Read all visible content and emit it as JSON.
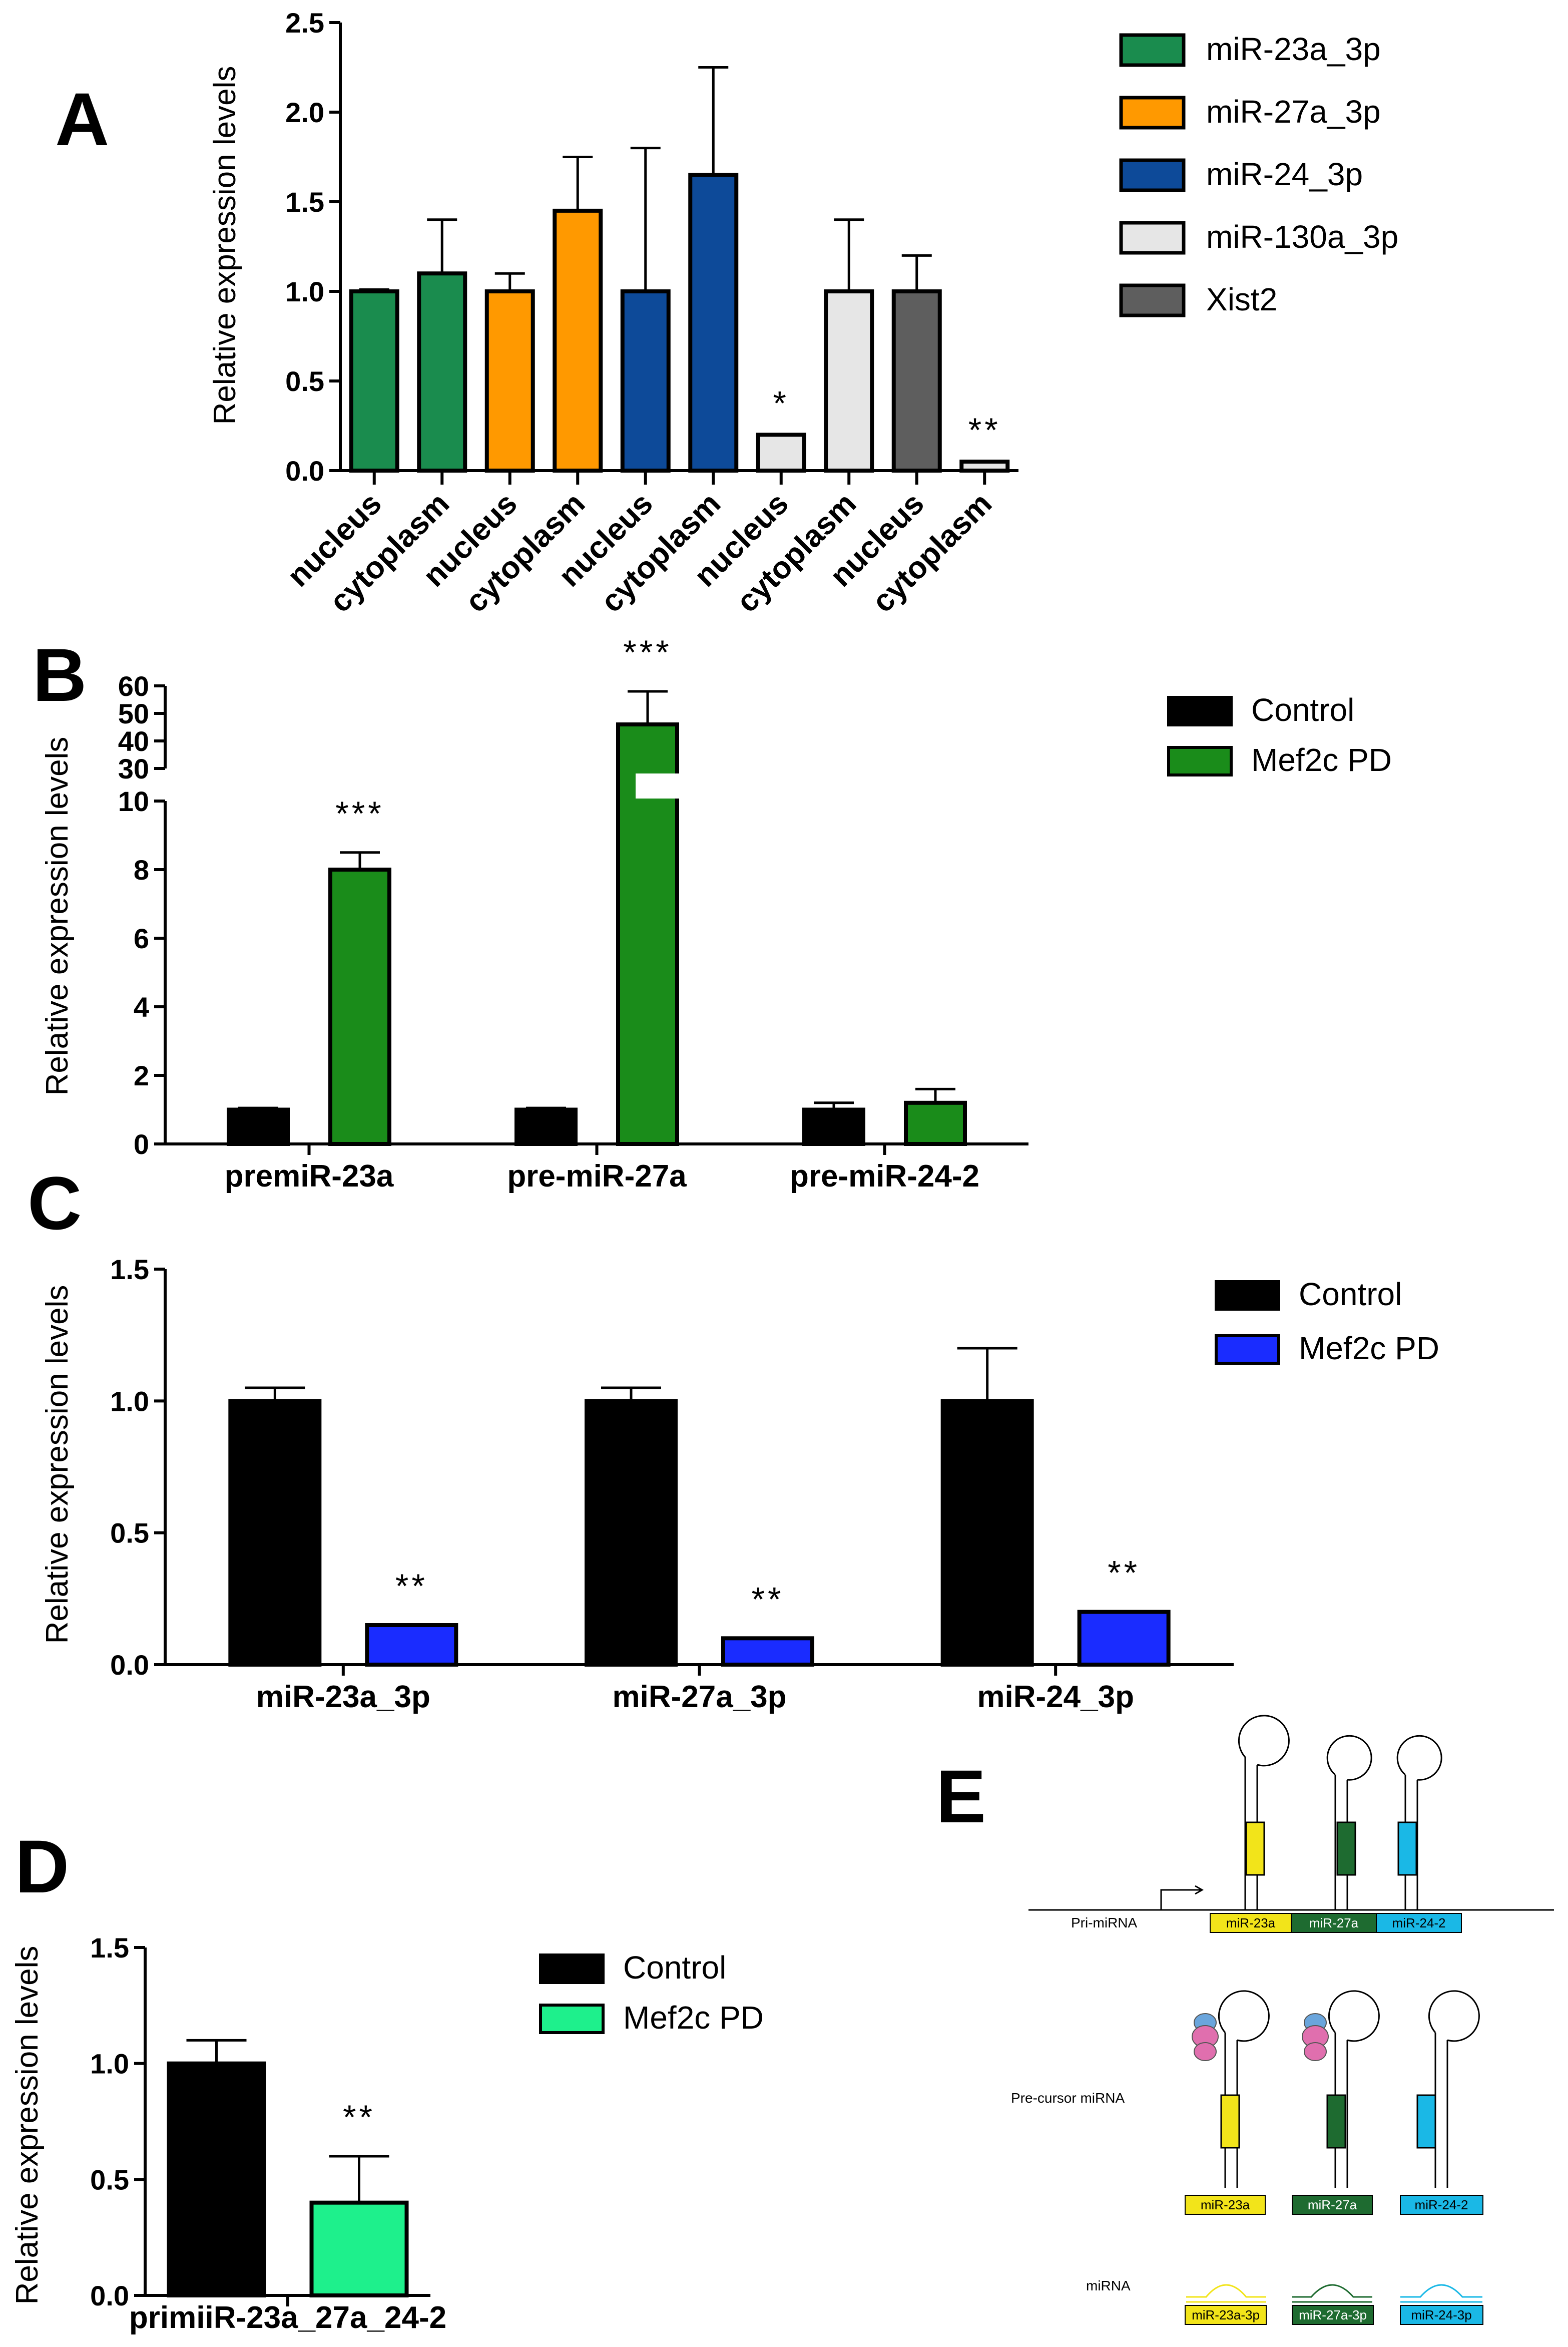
{
  "panels": {
    "A": "A",
    "B": "B",
    "C": "C",
    "D": "D",
    "E": "E"
  },
  "chart_data": [
    {
      "id": "A",
      "type": "bar",
      "title": "",
      "ylabel": "Relative expression levels",
      "ylim": [
        0,
        2.5
      ],
      "yticks": [
        0.0,
        0.5,
        1.0,
        1.5,
        2.0,
        2.5
      ],
      "yticklabels": [
        "0.0",
        "0.5",
        "1.0",
        "1.5",
        "2.0",
        "2.5"
      ],
      "categories": [
        "nucleus",
        "cytoplasm",
        "nucleus",
        "cytoplasm",
        "nucleus",
        "cytoplasm",
        "nucleus",
        "cytoplasm",
        "nucleus",
        "cytoplasm"
      ],
      "values": [
        1.0,
        1.1,
        1.0,
        1.45,
        1.0,
        1.65,
        0.2,
        1.0,
        1.0,
        0.05
      ],
      "errors": [
        0.01,
        0.3,
        0.1,
        0.3,
        0.8,
        0.6,
        0.0,
        0.4,
        0.2,
        0.0
      ],
      "colors": [
        "#1a8c4e",
        "#1a8c4e",
        "#ff9900",
        "#ff9900",
        "#0d4a99",
        "#0d4a99",
        "#e6e6e6",
        "#e6e6e6",
        "#5e5e5e",
        "#e6e6e6"
      ],
      "annotations": [
        "",
        "",
        "",
        "",
        "",
        "",
        "*",
        "",
        "",
        "**"
      ],
      "legend": [
        {
          "label": "miR-23a_3p",
          "color": "#1a8c4e"
        },
        {
          "label": "miR-27a_3p",
          "color": "#ff9900"
        },
        {
          "label": "miR-24_3p",
          "color": "#0d4a99"
        },
        {
          "label": "miR-130a_3p",
          "color": "#e6e6e6"
        },
        {
          "label": "Xist2",
          "color": "#5e5e5e"
        }
      ]
    },
    {
      "id": "B",
      "type": "bar",
      "ylabel": "Relative expression levels",
      "broken_axis": true,
      "ylim_lower": [
        0,
        10
      ],
      "ylim_upper": [
        30,
        60
      ],
      "yticks_lower": [
        0,
        2,
        4,
        6,
        8,
        10
      ],
      "yticklabels_lower": [
        "0",
        "2",
        "4",
        "6",
        "8",
        "10"
      ],
      "yticks_upper": [
        30,
        40,
        50,
        60
      ],
      "yticklabels_upper": [
        "30",
        "40",
        "50",
        "60"
      ],
      "categories": [
        "premiR-23a",
        "pre-miR-27a",
        "pre-miR-24-2"
      ],
      "series": [
        {
          "name": "Control",
          "color": "#000000",
          "values": [
            1.0,
            1.0,
            1.0
          ],
          "errors": [
            0.05,
            0.05,
            0.2
          ]
        },
        {
          "name": "Mef2c PD",
          "color": "#1a8c1a",
          "values": [
            8.0,
            46.0,
            1.2
          ],
          "errors": [
            0.5,
            12.0,
            0.4
          ]
        }
      ],
      "annotations": [
        "***",
        "***",
        ""
      ]
    },
    {
      "id": "C",
      "type": "bar",
      "ylabel": "Relative expression levels",
      "ylim": [
        0,
        1.5
      ],
      "yticks": [
        0.0,
        0.5,
        1.0,
        1.5
      ],
      "yticklabels": [
        "0.0",
        "0.5",
        "1.0",
        "1.5"
      ],
      "categories": [
        "miR-23a_3p",
        "miR-27a_3p",
        "miR-24_3p"
      ],
      "series": [
        {
          "name": "Control",
          "color": "#000000",
          "values": [
            1.0,
            1.0,
            1.0
          ],
          "errors": [
            0.05,
            0.05,
            0.2
          ]
        },
        {
          "name": "Mef2c PD",
          "color": "#1a2cff",
          "values": [
            0.15,
            0.1,
            0.2
          ],
          "errors": [
            0.0,
            0.0,
            0.0
          ]
        }
      ],
      "annotations": [
        "**",
        "**",
        "**"
      ]
    },
    {
      "id": "D",
      "type": "bar",
      "ylabel": "Relative expression levels",
      "ylim": [
        0,
        1.5
      ],
      "yticks": [
        0.0,
        0.5,
        1.0,
        1.5
      ],
      "yticklabels": [
        "0.0",
        "0.5",
        "1.0",
        "1.5"
      ],
      "categories": [
        "primiiR-23a_27a_24-2"
      ],
      "series": [
        {
          "name": "Control",
          "color": "#000000",
          "values": [
            1.0
          ],
          "errors": [
            0.1
          ]
        },
        {
          "name": "Mef2c PD",
          "color": "#1ef08c",
          "values": [
            0.4
          ],
          "errors": [
            0.2
          ]
        }
      ],
      "annotations": [
        "**"
      ]
    }
  ],
  "diagram_E": {
    "rows": [
      "Pri-miRNA",
      "Pre-cursor miRNA",
      "miRNA"
    ],
    "pri_segments": [
      {
        "label": "miR-23a",
        "color": "#f2e41a"
      },
      {
        "label": "miR-27a",
        "color": "#1e6b30"
      },
      {
        "label": "miR-24-2",
        "color": "#1ab8e6"
      }
    ],
    "pre_labels": [
      {
        "label": "miR-23a",
        "color": "#f2e41a"
      },
      {
        "label": "miR-27a",
        "color": "#1e6b30"
      },
      {
        "label": "miR-24-2",
        "color": "#1ab8e6"
      }
    ],
    "mature_labels": [
      {
        "label": "miR-23a-3p",
        "color": "#f2e41a"
      },
      {
        "label": "miR-27a-3p",
        "color": "#1e6b30"
      },
      {
        "label": "miR-24-3p",
        "color": "#1ab8e6"
      }
    ]
  }
}
